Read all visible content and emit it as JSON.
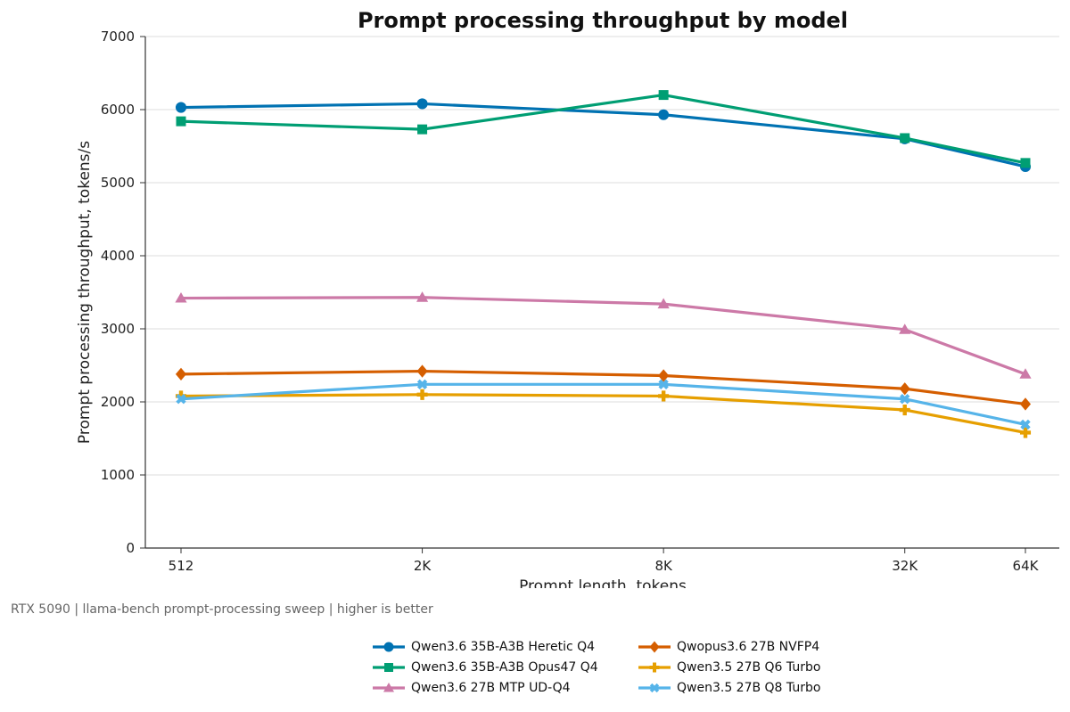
{
  "chart_data": {
    "type": "line",
    "title": "Prompt processing throughput by model",
    "xlabel": "Prompt length, tokens",
    "ylabel": "Prompt processing throughput, tokens/s",
    "x_scale": "log2",
    "categories": [
      "512",
      "2K",
      "8K",
      "32K",
      "64K"
    ],
    "x": [
      512,
      2048,
      8192,
      32768,
      65536
    ],
    "ylim": [
      0,
      7000
    ],
    "yticks": [
      "0",
      "1000",
      "2000",
      "3000",
      "4000",
      "5000",
      "6000",
      "7000"
    ],
    "grid": "horizontal",
    "legend_position": "bottom",
    "series": [
      {
        "name": "Qwen3.6 35B-A3B Heretic Q4",
        "color": "#0072B2",
        "marker": "circle",
        "values": [
          6030,
          6080,
          5930,
          5600,
          5220
        ]
      },
      {
        "name": "Qwen3.6 35B-A3B Opus47 Q4",
        "color": "#009E73",
        "marker": "square",
        "values": [
          5840,
          5730,
          6200,
          5610,
          5270
        ]
      },
      {
        "name": "Qwen3.6 27B MTP UD-Q4",
        "color": "#CC79A7",
        "marker": "triangle",
        "values": [
          3420,
          3430,
          3340,
          2990,
          2380
        ]
      },
      {
        "name": "Qwopus3.6 27B NVFP4",
        "color": "#D55E00",
        "marker": "diamond",
        "values": [
          2380,
          2420,
          2360,
          2180,
          1970
        ]
      },
      {
        "name": "Qwen3.5 27B Q6 Turbo",
        "color": "#E69F00",
        "marker": "plus",
        "values": [
          2080,
          2100,
          2080,
          1890,
          1580
        ]
      },
      {
        "name": "Qwen3.5 27B Q8 Turbo",
        "color": "#56B4E9",
        "marker": "x",
        "values": [
          2040,
          2240,
          2240,
          2040,
          1690
        ]
      }
    ]
  },
  "footnote": "RTX 5090 | llama-bench prompt-processing sweep | higher is better"
}
